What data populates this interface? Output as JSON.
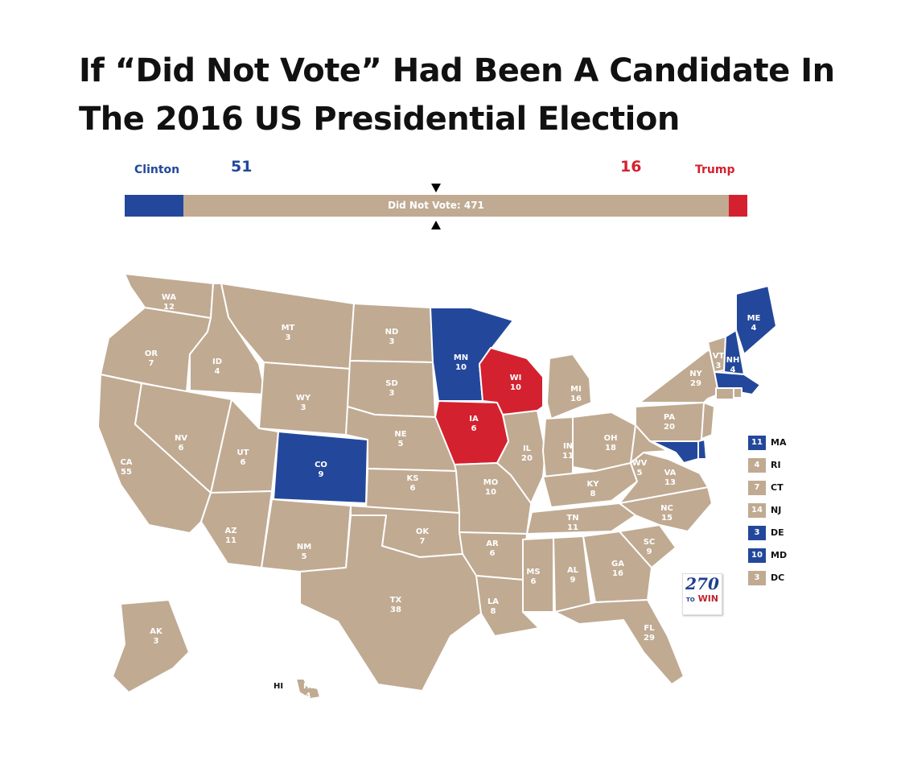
{
  "title_line1": "If “Did Not Vote” Had Been A Candidate In",
  "title_line2": "The 2016 US Presidential Election",
  "colors": {
    "blue": "#23489b",
    "red": "#d4212f",
    "tan": "#c0aa92",
    "white": "#ffffff"
  },
  "tally": {
    "clinton_label": "Clinton",
    "clinton_votes": "51",
    "trump_label": "Trump",
    "trump_votes": "16",
    "dnv_label": "Did Not Vote: 471",
    "clinton_ev": 51,
    "dnv_ev": 471,
    "trump_ev": 16
  },
  "states": [
    {
      "abbr": "WA",
      "ev": "12",
      "winner": "dnv"
    },
    {
      "abbr": "OR",
      "ev": "7",
      "winner": "dnv"
    },
    {
      "abbr": "CA",
      "ev": "55",
      "winner": "dnv"
    },
    {
      "abbr": "ID",
      "ev": "4",
      "winner": "dnv"
    },
    {
      "abbr": "NV",
      "ev": "6",
      "winner": "dnv"
    },
    {
      "abbr": "MT",
      "ev": "3",
      "winner": "dnv"
    },
    {
      "abbr": "WY",
      "ev": "3",
      "winner": "dnv"
    },
    {
      "abbr": "UT",
      "ev": "6",
      "winner": "dnv"
    },
    {
      "abbr": "AZ",
      "ev": "11",
      "winner": "dnv"
    },
    {
      "abbr": "CO",
      "ev": "9",
      "winner": "clinton"
    },
    {
      "abbr": "NM",
      "ev": "5",
      "winner": "dnv"
    },
    {
      "abbr": "ND",
      "ev": "3",
      "winner": "dnv"
    },
    {
      "abbr": "SD",
      "ev": "3",
      "winner": "dnv"
    },
    {
      "abbr": "NE",
      "ev": "5",
      "winner": "dnv"
    },
    {
      "abbr": "KS",
      "ev": "6",
      "winner": "dnv"
    },
    {
      "abbr": "OK",
      "ev": "7",
      "winner": "dnv"
    },
    {
      "abbr": "TX",
      "ev": "38",
      "winner": "dnv"
    },
    {
      "abbr": "MN",
      "ev": "10",
      "winner": "clinton"
    },
    {
      "abbr": "IA",
      "ev": "6",
      "winner": "trump"
    },
    {
      "abbr": "MO",
      "ev": "10",
      "winner": "dnv"
    },
    {
      "abbr": "AR",
      "ev": "6",
      "winner": "dnv"
    },
    {
      "abbr": "LA",
      "ev": "8",
      "winner": "dnv"
    },
    {
      "abbr": "WI",
      "ev": "10",
      "winner": "trump"
    },
    {
      "abbr": "IL",
      "ev": "20",
      "winner": "dnv"
    },
    {
      "abbr": "MI",
      "ev": "16",
      "winner": "dnv"
    },
    {
      "abbr": "IN",
      "ev": "11",
      "winner": "dnv"
    },
    {
      "abbr": "OH",
      "ev": "18",
      "winner": "dnv"
    },
    {
      "abbr": "KY",
      "ev": "8",
      "winner": "dnv"
    },
    {
      "abbr": "TN",
      "ev": "11",
      "winner": "dnv"
    },
    {
      "abbr": "MS",
      "ev": "6",
      "winner": "dnv"
    },
    {
      "abbr": "AL",
      "ev": "9",
      "winner": "dnv"
    },
    {
      "abbr": "GA",
      "ev": "16",
      "winner": "dnv"
    },
    {
      "abbr": "FL",
      "ev": "29",
      "winner": "dnv"
    },
    {
      "abbr": "SC",
      "ev": "9",
      "winner": "dnv"
    },
    {
      "abbr": "NC",
      "ev": "15",
      "winner": "dnv"
    },
    {
      "abbr": "VA",
      "ev": "13",
      "winner": "dnv"
    },
    {
      "abbr": "WV",
      "ev": "5",
      "winner": "dnv"
    },
    {
      "abbr": "PA",
      "ev": "20",
      "winner": "dnv"
    },
    {
      "abbr": "NY",
      "ev": "29",
      "winner": "dnv"
    },
    {
      "abbr": "VT",
      "ev": "3",
      "winner": "dnv"
    },
    {
      "abbr": "NH",
      "ev": "4",
      "winner": "clinton"
    },
    {
      "abbr": "ME",
      "ev": "4",
      "winner": "clinton"
    },
    {
      "abbr": "AK",
      "ev": "3",
      "winner": "dnv"
    },
    {
      "abbr": "HI",
      "ev": "4",
      "winner": "dnv"
    }
  ],
  "small_states": [
    {
      "abbr": "MA",
      "ev": "11",
      "winner": "clinton"
    },
    {
      "abbr": "RI",
      "ev": "4",
      "winner": "dnv"
    },
    {
      "abbr": "CT",
      "ev": "7",
      "winner": "dnv"
    },
    {
      "abbr": "NJ",
      "ev": "14",
      "winner": "dnv"
    },
    {
      "abbr": "DE",
      "ev": "3",
      "winner": "clinton"
    },
    {
      "abbr": "MD",
      "ev": "10",
      "winner": "clinton"
    },
    {
      "abbr": "DC",
      "ev": "3",
      "winner": "dnv"
    }
  ],
  "logo": {
    "number": "270",
    "to": "TO",
    "win": "WIN"
  }
}
